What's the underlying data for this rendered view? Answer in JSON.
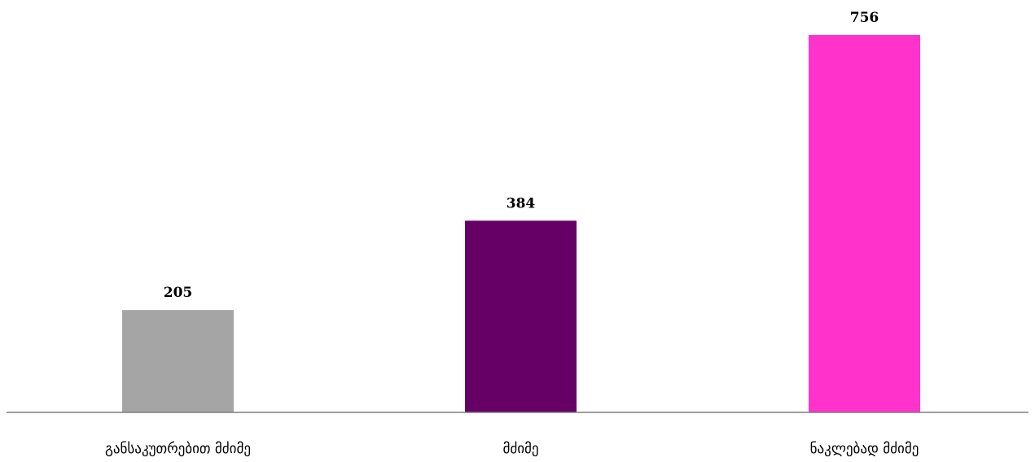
{
  "chart_data": {
    "type": "bar",
    "categories": [
      "განსაკუთრებით მძიმე",
      "მძიმე",
      "ნაკლებად მძიმე"
    ],
    "values": [
      205,
      384,
      756
    ],
    "colors": [
      "#a5a5a5",
      "#660066",
      "#ff33cc"
    ],
    "ylim": [
      0,
      756
    ],
    "grid": false,
    "legend": "none",
    "axis_color": "#7f7f7f"
  }
}
